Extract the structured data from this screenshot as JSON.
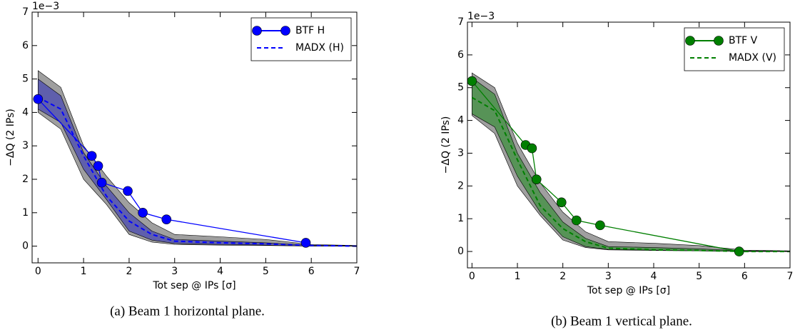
{
  "chart_data": [
    {
      "type": "line",
      "xlabel": "Tot sep @ IPs [σ]",
      "ylabel": "−ΔQ (2 IPs)",
      "y_offset_label": "1e−3",
      "caption": "(a) Beam 1 horizontal plane.",
      "xlim": [
        -0.13,
        7
      ],
      "ylim": [
        -0.5,
        7
      ],
      "xticks": [
        0,
        1,
        2,
        3,
        4,
        5,
        6,
        7
      ],
      "yticks": [
        0,
        1,
        2,
        3,
        4,
        5,
        6,
        7
      ],
      "grid": false,
      "legend": "upper right",
      "bands": [
        {
          "color": "#7f7f7f",
          "x": [
            0,
            0.5,
            1,
            1.5,
            2,
            2.5,
            3,
            4,
            5,
            6,
            7
          ],
          "upper": [
            5.25,
            4.75,
            3.0,
            2.1,
            1.3,
            0.7,
            0.35,
            0.28,
            0.2,
            0.05,
            0.02
          ],
          "lower": [
            4.0,
            3.5,
            2.0,
            1.25,
            0.35,
            0.12,
            0.05,
            0.03,
            0.02,
            0.0,
            0.0
          ]
        },
        {
          "color": "#4a4ab0",
          "x": [
            0,
            0.5,
            1,
            1.5,
            2,
            2.5,
            3,
            4,
            5,
            6,
            7
          ],
          "upper": [
            5.0,
            4.5,
            2.8,
            1.8,
            1.0,
            0.45,
            0.2,
            0.15,
            0.1,
            0.03,
            0.01
          ],
          "lower": [
            4.1,
            3.7,
            2.3,
            1.4,
            0.45,
            0.18,
            0.08,
            0.05,
            0.03,
            0.0,
            0.0
          ]
        }
      ],
      "series": [
        {
          "name": "BTF H",
          "color": "#0000ff",
          "style": "marker-line",
          "x": [
            0,
            1.18,
            1.32,
            1.4,
            1.97,
            2.3,
            2.82,
            5.88
          ],
          "values": [
            4.4,
            2.7,
            2.4,
            1.9,
            1.65,
            1.0,
            0.8,
            0.1
          ]
        },
        {
          "name": "MADX (H)",
          "color": "#0000ff",
          "style": "dashed",
          "x": [
            0,
            0.5,
            1,
            1.5,
            2,
            2.5,
            3,
            4,
            5,
            6,
            7
          ],
          "values": [
            4.45,
            4.1,
            2.7,
            1.5,
            0.75,
            0.35,
            0.15,
            0.1,
            0.07,
            0.02,
            0.0
          ]
        }
      ]
    },
    {
      "type": "line",
      "xlabel": "Tot sep @ IPs [σ]",
      "ylabel": "−ΔQ (2 IPs)",
      "y_offset_label": "1e−3",
      "caption": "(b) Beam 1 vertical plane.",
      "xlim": [
        -0.1,
        7
      ],
      "ylim": [
        -0.5,
        7
      ],
      "xticks": [
        0,
        1,
        2,
        3,
        4,
        5,
        6,
        7
      ],
      "yticks": [
        0,
        1,
        2,
        3,
        4,
        5,
        6,
        7
      ],
      "grid": false,
      "legend": "upper right",
      "bands": [
        {
          "color": "#7f7f7f",
          "x": [
            0,
            0.5,
            1,
            1.5,
            2,
            2.5,
            3,
            4,
            5,
            6,
            7
          ],
          "upper": [
            5.45,
            5.0,
            3.3,
            2.1,
            1.2,
            0.6,
            0.3,
            0.25,
            0.18,
            0.04,
            0.02
          ],
          "lower": [
            4.15,
            3.6,
            2.0,
            1.1,
            0.35,
            0.12,
            0.05,
            0.03,
            0.02,
            0.0,
            0.0
          ]
        },
        {
          "color": "#3f8f3f",
          "x": [
            0,
            0.5,
            1,
            1.5,
            2,
            2.5,
            3,
            4,
            5,
            6,
            7
          ],
          "upper": [
            5.3,
            4.8,
            3.0,
            1.8,
            0.9,
            0.4,
            0.15,
            0.12,
            0.08,
            0.02,
            0.01
          ],
          "lower": [
            4.2,
            3.8,
            2.3,
            1.2,
            0.45,
            0.15,
            0.06,
            0.04,
            0.02,
            0.0,
            0.0
          ]
        }
      ],
      "series": [
        {
          "name": "BTF V",
          "color": "#007f00",
          "style": "marker-line",
          "x": [
            0,
            1.18,
            1.32,
            1.42,
            1.97,
            2.3,
            2.82,
            5.88
          ],
          "values": [
            5.2,
            3.25,
            3.15,
            2.2,
            1.5,
            0.95,
            0.8,
            0.0
          ]
        },
        {
          "name": "MADX (V)",
          "color": "#007f00",
          "style": "dashed",
          "x": [
            0,
            0.5,
            1,
            1.5,
            2,
            2.5,
            3,
            4,
            5,
            6,
            7
          ],
          "values": [
            4.7,
            4.3,
            2.8,
            1.4,
            0.7,
            0.3,
            0.1,
            0.05,
            0.03,
            0.0,
            0.0
          ]
        }
      ]
    }
  ]
}
